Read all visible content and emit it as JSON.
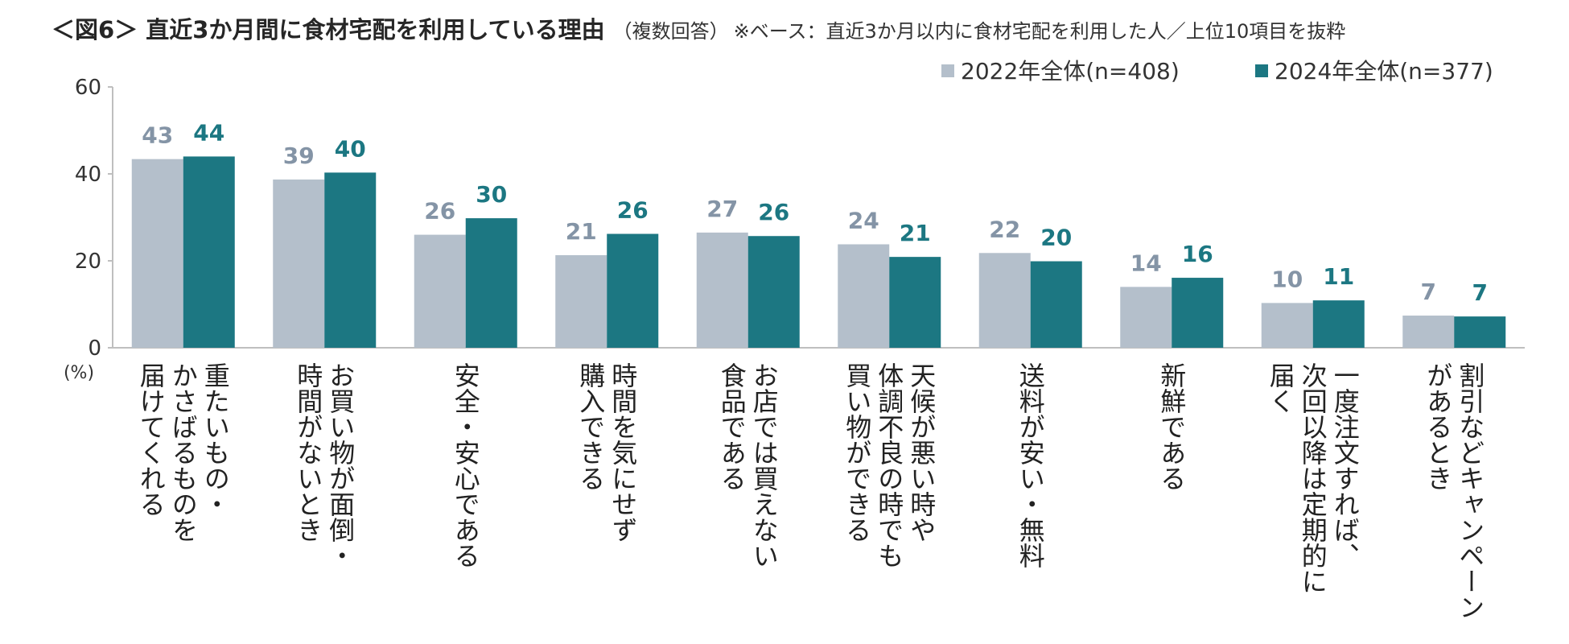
{
  "header": {
    "title": "＜図6＞ 直近3か月間に食材宅配を利用している理由",
    "subtitle": "（複数回答）",
    "note": "※ベース：直近3か月以内に食材宅配を利用した人／上位10項目を抜粋"
  },
  "colors": {
    "series_2022": "#b4bfcb",
    "series_2024": "#1c7782",
    "label_2022": "#8494a6",
    "label_2024": "#1c7782",
    "axis": "#bfbfbf"
  },
  "chart_data": {
    "type": "bar",
    "title": "",
    "xlabel": "",
    "ylabel": "(%)",
    "ylim": [
      0,
      60
    ],
    "yticks": [
      0,
      20,
      40,
      60
    ],
    "grid": false,
    "legend_position": "top-right",
    "categories": [
      "重たいもの・かさばるものを届けてくれる",
      "お買い物が面倒・時間がないとき",
      "安全・安心である",
      "時間を気にせず購入できる",
      "お店では買えない食品である",
      "天候が悪い時や体調不良の時でも買い物ができる",
      "送料が安い・無料",
      "新鮮である",
      "一度注文すれば、次回以降は定期的に届く",
      "割引などキャンペーンがあるとき"
    ],
    "category_lines": [
      [
        "重たいもの・",
        "かさばるものを",
        "届けてくれる"
      ],
      [
        "お買い物が面倒・",
        "時間がないとき"
      ],
      [
        "安全・安心である"
      ],
      [
        "時間を気にせず",
        "購入できる"
      ],
      [
        "お店では買えない",
        "食品である"
      ],
      [
        "天候が悪い時や",
        "体調不良の時でも",
        "買い物ができる"
      ],
      [
        "送料が安い・無料"
      ],
      [
        "新鮮である"
      ],
      [
        "一度注文すれば、",
        "次回以降は定期的に",
        "届く"
      ],
      [
        "割引などキャンペーン",
        "があるとき"
      ]
    ],
    "series": [
      {
        "name": "2022年全体(n=408)",
        "values": [
          43.4,
          38.7,
          26.0,
          21.3,
          26.5,
          23.8,
          21.8,
          14.0,
          10.3,
          7.4
        ]
      },
      {
        "name": "2024年全体(n=377)",
        "values": [
          44.0,
          40.3,
          29.8,
          26.2,
          25.7,
          20.9,
          19.9,
          16.1,
          10.9,
          7.2
        ]
      }
    ]
  }
}
